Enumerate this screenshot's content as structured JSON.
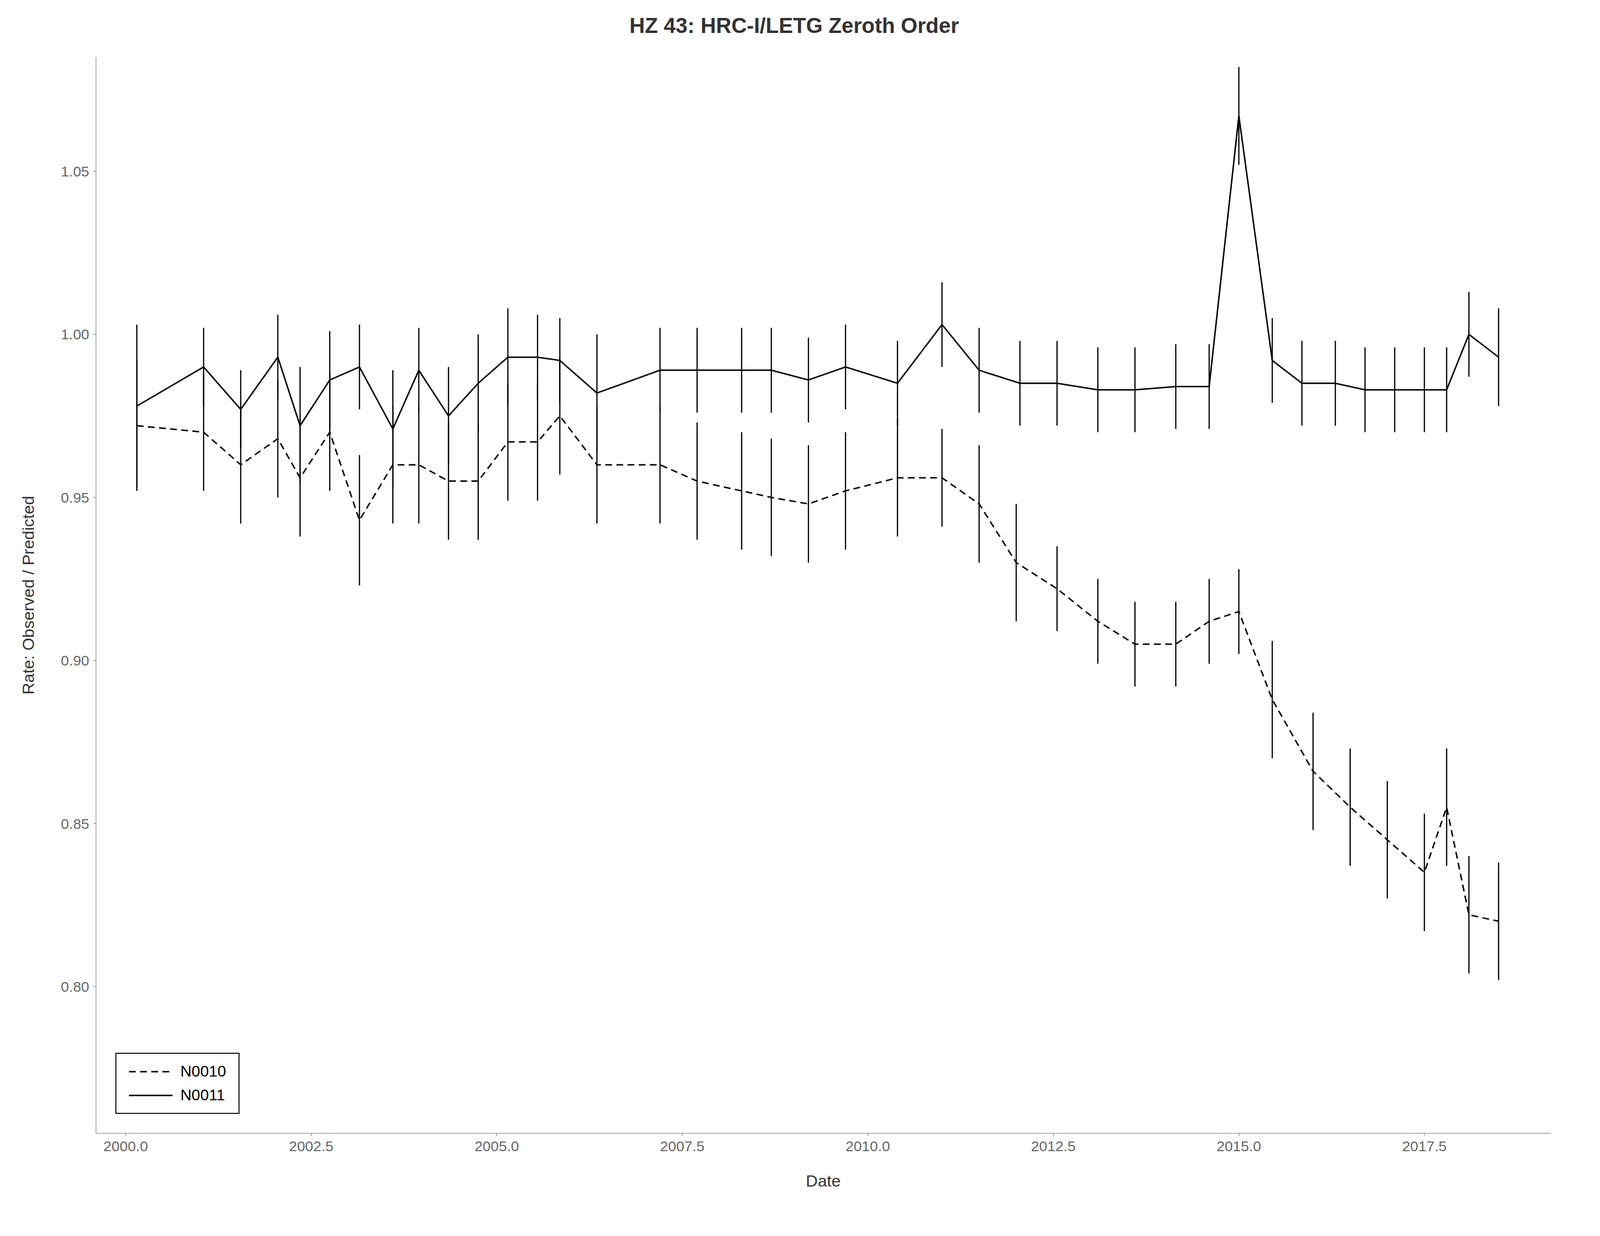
{
  "chart_data": {
    "type": "line",
    "title": "HZ 43:  HRC-I/LETG Zeroth Order",
    "xlabel": "Date",
    "ylabel": "Rate: Observed / Predicted",
    "xlim": [
      1999.6,
      2019.2
    ],
    "ylim": [
      0.755,
      1.085
    ],
    "xticks": [
      {
        "value": 2000,
        "label": "2000.0"
      },
      2002.5,
      {
        "value": 2005,
        "label": "2005.0"
      },
      2007.5,
      {
        "value": 2010,
        "label": "2010.0"
      },
      2012.5,
      {
        "value": 2015,
        "label": "2015.0"
      },
      2017.5
    ],
    "yticks": [
      {
        "value": 0.8,
        "label": "0.80"
      },
      0.85,
      {
        "value": 0.9,
        "label": "0.90"
      },
      0.95,
      {
        "value": 1.0,
        "label": "1.00"
      },
      1.05
    ],
    "grid": false,
    "legend": "lower left",
    "series": [
      {
        "name": "N0010",
        "color": "black",
        "line_style": "dashed",
        "x": [
          2000.15,
          2001.05,
          2001.55,
          2002.05,
          2002.35,
          2002.75,
          2003.15,
          2003.6,
          2003.95,
          2004.35,
          2004.75,
          2005.15,
          2005.55,
          2005.85,
          2006.35,
          2007.2,
          2007.7,
          2008.3,
          2008.7,
          2009.2,
          2009.7,
          2010.4,
          2011.0,
          2011.5,
          2012.0,
          2012.55,
          2013.1,
          2013.6,
          2014.15,
          2014.6,
          2015.0,
          2015.45,
          2016.0,
          2016.5,
          2017.0,
          2017.5,
          2017.8,
          2018.1,
          2018.5
        ],
        "values": [
          0.972,
          0.97,
          0.96,
          0.968,
          0.956,
          0.97,
          0.943,
          0.96,
          0.96,
          0.955,
          0.955,
          0.967,
          0.967,
          0.975,
          0.96,
          0.96,
          0.955,
          0.952,
          0.95,
          0.948,
          0.952,
          0.956,
          0.956,
          0.948,
          0.93,
          0.922,
          0.912,
          0.905,
          0.905,
          0.912,
          0.915,
          0.888,
          0.866,
          0.855,
          0.845,
          0.835,
          0.855,
          0.822,
          0.82
        ],
        "yerr": [
          0.02,
          0.018,
          0.018,
          0.018,
          0.018,
          0.018,
          0.02,
          0.018,
          0.018,
          0.018,
          0.018,
          0.018,
          0.018,
          0.018,
          0.018,
          0.018,
          0.018,
          0.018,
          0.018,
          0.018,
          0.018,
          0.018,
          0.015,
          0.018,
          0.018,
          0.013,
          0.013,
          0.013,
          0.013,
          0.013,
          0.013,
          0.018,
          0.018,
          0.018,
          0.018,
          0.018,
          0.018,
          0.018,
          0.018
        ]
      },
      {
        "name": "N0011",
        "color": "black",
        "line_style": "solid",
        "x": [
          2000.15,
          2001.05,
          2001.55,
          2002.05,
          2002.35,
          2002.75,
          2003.15,
          2003.6,
          2003.95,
          2004.35,
          2004.75,
          2005.15,
          2005.55,
          2005.85,
          2006.35,
          2007.2,
          2007.7,
          2008.3,
          2008.7,
          2009.2,
          2009.7,
          2010.4,
          2011.0,
          2011.5,
          2012.05,
          2012.55,
          2013.1,
          2013.6,
          2014.15,
          2014.6,
          2015.0,
          2015.45,
          2015.85,
          2016.3,
          2016.7,
          2017.1,
          2017.5,
          2017.8,
          2018.1,
          2018.5
        ],
        "values": [
          0.978,
          0.99,
          0.977,
          0.993,
          0.972,
          0.986,
          0.99,
          0.971,
          0.989,
          0.975,
          0.985,
          0.993,
          0.993,
          0.992,
          0.982,
          0.989,
          0.989,
          0.989,
          0.989,
          0.986,
          0.99,
          0.985,
          1.003,
          0.989,
          0.985,
          0.985,
          0.983,
          0.983,
          0.984,
          0.984,
          1.067,
          0.992,
          0.985,
          0.985,
          0.983,
          0.983,
          0.983,
          0.983,
          1.0,
          0.993
        ],
        "yerr": [
          0.025,
          0.012,
          0.012,
          0.013,
          0.018,
          0.015,
          0.013,
          0.018,
          0.013,
          0.015,
          0.015,
          0.015,
          0.013,
          0.013,
          0.018,
          0.013,
          0.013,
          0.013,
          0.013,
          0.013,
          0.013,
          0.013,
          0.013,
          0.013,
          0.013,
          0.013,
          0.013,
          0.013,
          0.013,
          0.013,
          0.015,
          0.013,
          0.013,
          0.013,
          0.013,
          0.013,
          0.013,
          0.013,
          0.013,
          0.015
        ]
      }
    ]
  }
}
